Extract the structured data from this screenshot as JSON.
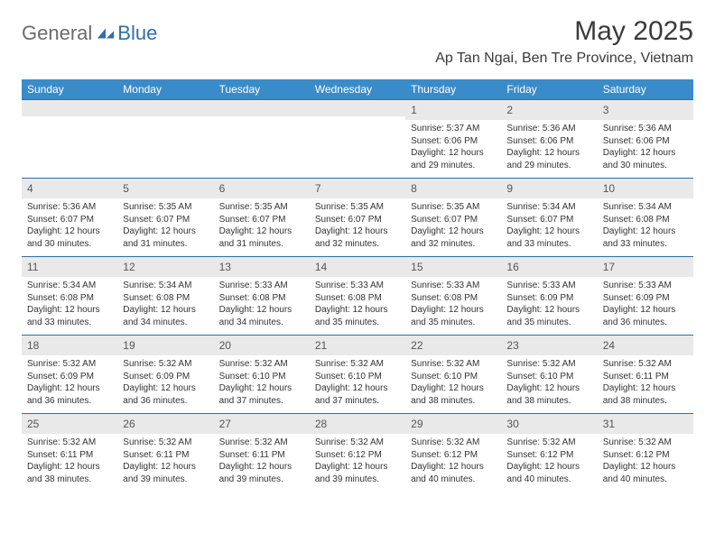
{
  "brand": {
    "general": "General",
    "blue": "Blue"
  },
  "title": "May 2025",
  "location": "Ap Tan Ngai, Ben Tre Province, Vietnam",
  "colors": {
    "header_bg": "#3a8bc9",
    "divider": "#2f6fa8",
    "daynum_bg": "#e9e9e9",
    "text": "#333333",
    "brand_gray": "#6b6b6b",
    "brand_blue": "#2f6fa8"
  },
  "weekdays": [
    "Sunday",
    "Monday",
    "Tuesday",
    "Wednesday",
    "Thursday",
    "Friday",
    "Saturday"
  ],
  "weeks": [
    [
      null,
      null,
      null,
      null,
      {
        "n": "1",
        "sr": "5:37 AM",
        "ss": "6:06 PM",
        "dl": "12 hours and 29 minutes."
      },
      {
        "n": "2",
        "sr": "5:36 AM",
        "ss": "6:06 PM",
        "dl": "12 hours and 29 minutes."
      },
      {
        "n": "3",
        "sr": "5:36 AM",
        "ss": "6:06 PM",
        "dl": "12 hours and 30 minutes."
      }
    ],
    [
      {
        "n": "4",
        "sr": "5:36 AM",
        "ss": "6:07 PM",
        "dl": "12 hours and 30 minutes."
      },
      {
        "n": "5",
        "sr": "5:35 AM",
        "ss": "6:07 PM",
        "dl": "12 hours and 31 minutes."
      },
      {
        "n": "6",
        "sr": "5:35 AM",
        "ss": "6:07 PM",
        "dl": "12 hours and 31 minutes."
      },
      {
        "n": "7",
        "sr": "5:35 AM",
        "ss": "6:07 PM",
        "dl": "12 hours and 32 minutes."
      },
      {
        "n": "8",
        "sr": "5:35 AM",
        "ss": "6:07 PM",
        "dl": "12 hours and 32 minutes."
      },
      {
        "n": "9",
        "sr": "5:34 AM",
        "ss": "6:07 PM",
        "dl": "12 hours and 33 minutes."
      },
      {
        "n": "10",
        "sr": "5:34 AM",
        "ss": "6:08 PM",
        "dl": "12 hours and 33 minutes."
      }
    ],
    [
      {
        "n": "11",
        "sr": "5:34 AM",
        "ss": "6:08 PM",
        "dl": "12 hours and 33 minutes."
      },
      {
        "n": "12",
        "sr": "5:34 AM",
        "ss": "6:08 PM",
        "dl": "12 hours and 34 minutes."
      },
      {
        "n": "13",
        "sr": "5:33 AM",
        "ss": "6:08 PM",
        "dl": "12 hours and 34 minutes."
      },
      {
        "n": "14",
        "sr": "5:33 AM",
        "ss": "6:08 PM",
        "dl": "12 hours and 35 minutes."
      },
      {
        "n": "15",
        "sr": "5:33 AM",
        "ss": "6:08 PM",
        "dl": "12 hours and 35 minutes."
      },
      {
        "n": "16",
        "sr": "5:33 AM",
        "ss": "6:09 PM",
        "dl": "12 hours and 35 minutes."
      },
      {
        "n": "17",
        "sr": "5:33 AM",
        "ss": "6:09 PM",
        "dl": "12 hours and 36 minutes."
      }
    ],
    [
      {
        "n": "18",
        "sr": "5:32 AM",
        "ss": "6:09 PM",
        "dl": "12 hours and 36 minutes."
      },
      {
        "n": "19",
        "sr": "5:32 AM",
        "ss": "6:09 PM",
        "dl": "12 hours and 36 minutes."
      },
      {
        "n": "20",
        "sr": "5:32 AM",
        "ss": "6:10 PM",
        "dl": "12 hours and 37 minutes."
      },
      {
        "n": "21",
        "sr": "5:32 AM",
        "ss": "6:10 PM",
        "dl": "12 hours and 37 minutes."
      },
      {
        "n": "22",
        "sr": "5:32 AM",
        "ss": "6:10 PM",
        "dl": "12 hours and 38 minutes."
      },
      {
        "n": "23",
        "sr": "5:32 AM",
        "ss": "6:10 PM",
        "dl": "12 hours and 38 minutes."
      },
      {
        "n": "24",
        "sr": "5:32 AM",
        "ss": "6:11 PM",
        "dl": "12 hours and 38 minutes."
      }
    ],
    [
      {
        "n": "25",
        "sr": "5:32 AM",
        "ss": "6:11 PM",
        "dl": "12 hours and 38 minutes."
      },
      {
        "n": "26",
        "sr": "5:32 AM",
        "ss": "6:11 PM",
        "dl": "12 hours and 39 minutes."
      },
      {
        "n": "27",
        "sr": "5:32 AM",
        "ss": "6:11 PM",
        "dl": "12 hours and 39 minutes."
      },
      {
        "n": "28",
        "sr": "5:32 AM",
        "ss": "6:12 PM",
        "dl": "12 hours and 39 minutes."
      },
      {
        "n": "29",
        "sr": "5:32 AM",
        "ss": "6:12 PM",
        "dl": "12 hours and 40 minutes."
      },
      {
        "n": "30",
        "sr": "5:32 AM",
        "ss": "6:12 PM",
        "dl": "12 hours and 40 minutes."
      },
      {
        "n": "31",
        "sr": "5:32 AM",
        "ss": "6:12 PM",
        "dl": "12 hours and 40 minutes."
      }
    ]
  ],
  "labels": {
    "sunrise": "Sunrise: ",
    "sunset": "Sunset: ",
    "daylight": "Daylight: "
  }
}
